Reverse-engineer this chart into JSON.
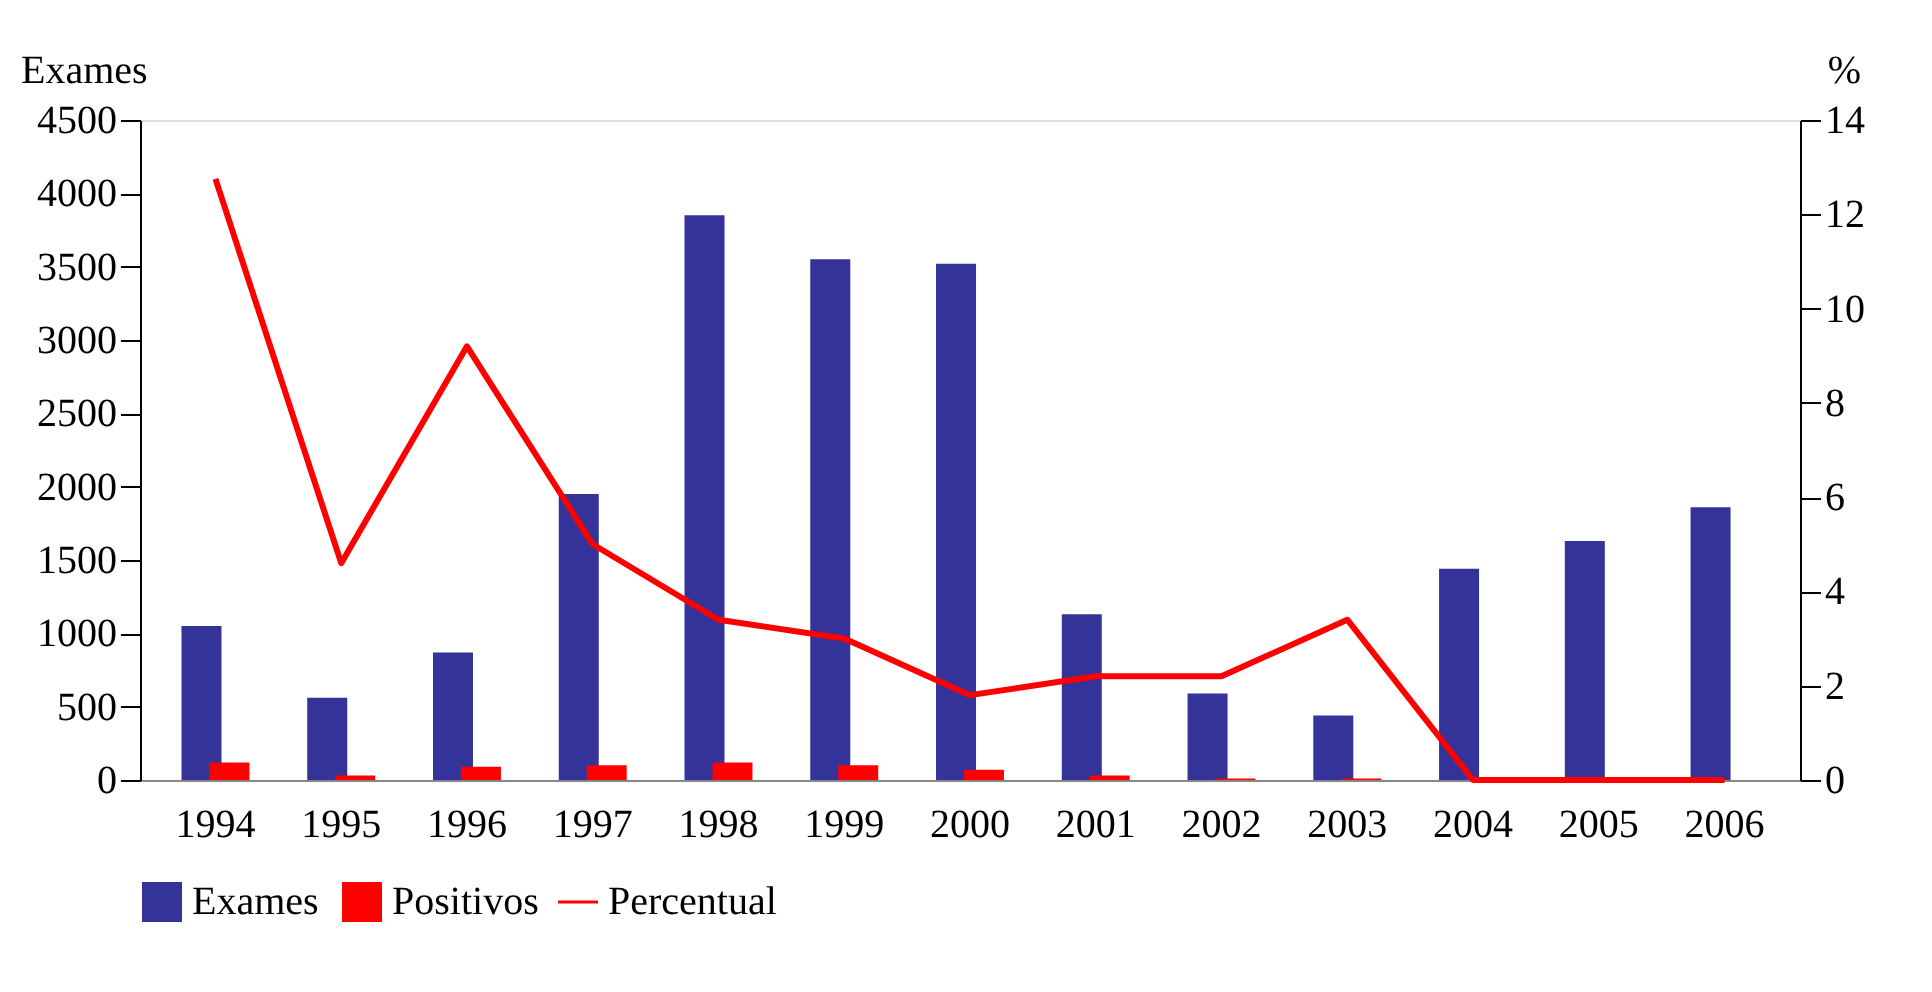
{
  "chart_data": {
    "type": "bar",
    "ylabel": "Exames",
    "y2label": "%",
    "categories": [
      "1994",
      "1995",
      "1996",
      "1997",
      "1998",
      "1999",
      "2000",
      "2001",
      "2002",
      "2003",
      "2004",
      "2005",
      "2006"
    ],
    "series": [
      {
        "name": "Exames",
        "color": "#333399",
        "values": [
          1050,
          560,
          870,
          1950,
          3850,
          3550,
          3520,
          1130,
          590,
          440,
          1440,
          1630,
          1860
        ]
      },
      {
        "name": "Positivos",
        "color": "#ff0000",
        "values": [
          120,
          30,
          90,
          100,
          120,
          100,
          70,
          30,
          10,
          10,
          0,
          0,
          0
        ]
      },
      {
        "name": "Percentual",
        "color": "#ff0000",
        "type": "line",
        "axis": "y2",
        "values": [
          12.75,
          4.6,
          9.2,
          5.0,
          3.4,
          3.0,
          1.8,
          2.2,
          2.2,
          3.4,
          0,
          0,
          0
        ]
      }
    ],
    "ylim": [
      0,
      4500
    ],
    "yticks": [
      0,
      500,
      1000,
      1500,
      2000,
      2500,
      3000,
      3500,
      4000,
      4500
    ],
    "y2lim": [
      0,
      14
    ],
    "y2ticks": [
      0,
      2,
      4,
      6,
      8,
      10,
      12,
      14
    ],
    "grid": false,
    "legend": "bottom",
    "marker": "none",
    "line_style": "solid"
  }
}
